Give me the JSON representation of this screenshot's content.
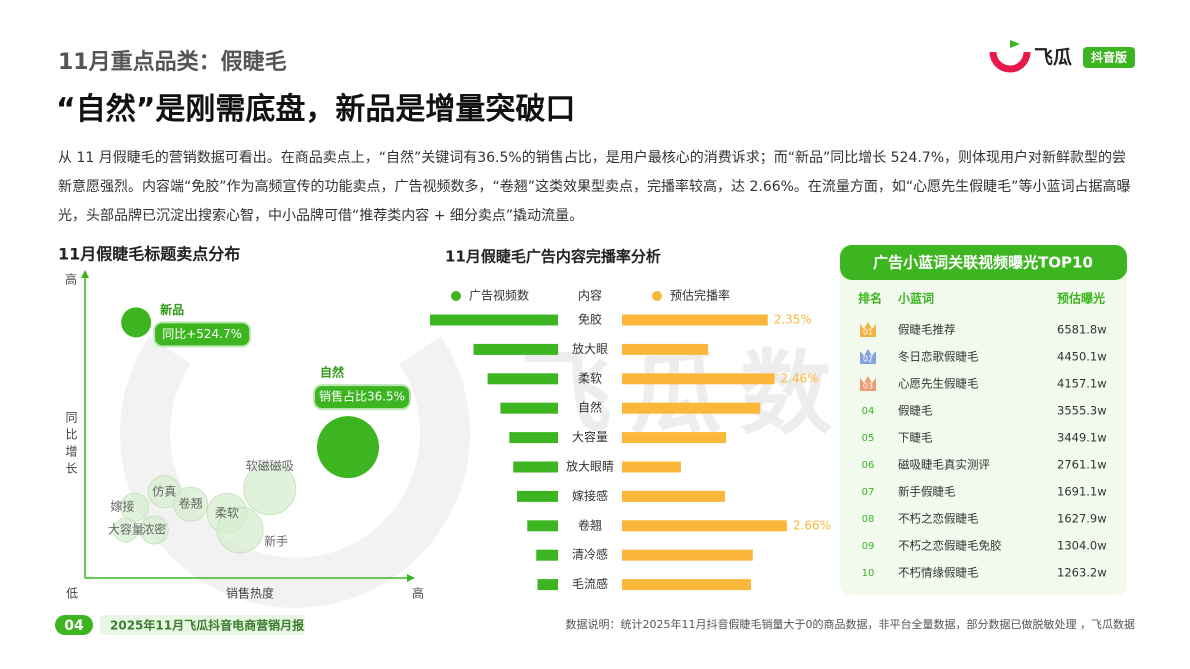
{
  "header": {
    "section": "11月重点品类：假睫毛",
    "headline": "“自然”是刚需底盘，新品是增量突破口",
    "logo": "飞瓜",
    "logo_badge": "抖音版"
  },
  "intro": "从 11 月假睫毛的营销数据可看出。在商品卖点上，“自然”关键词有36.5%的销售占比，是用户最核心的消费诉求；而“新品”同比增长 524.7%，则体现用户对新鲜款型的尝新意愿强烈。内容端“免胶”作为高频宣传的功能卖点，广告视频数多，“卷翘”这类效果型卖点，完播率较高，达 2.66%。在流量方面，如“心愿先生假睫毛”等小蓝词占据高曝光，头部品牌已沉淀出搜索心智，中小品牌可借“推荐类内容 + 细分卖点”撬动流量。",
  "watermark": "飞瓜数据",
  "chart_data": [
    {
      "type": "bubble",
      "title": "11月假睫毛标题卖点分布",
      "x_label": "销售热度",
      "y_label": "同比增长",
      "categories": [
        "新品",
        "自然",
        "软磁磁吸",
        "仿真",
        "嫁接",
        "卷翘",
        "柔软",
        "大容量",
        "浓密",
        "新手"
      ],
      "x": [
        15.5,
        79.7,
        56,
        24,
        15,
        32,
        43,
        12.4,
        21,
        47
      ],
      "values": [
        83,
        42.5,
        29,
        28,
        23,
        24,
        21,
        15.6,
        15.6,
        15.6
      ],
      "sizes": [
        15,
        31,
        26,
        16,
        14,
        17,
        20,
        12,
        14,
        23
      ],
      "highlight": [
        true,
        true,
        false,
        false,
        false,
        false,
        false,
        false,
        false,
        false
      ],
      "callouts": [
        "同比+524.7%",
        "销售占比36.5%",
        null,
        null,
        null,
        null,
        null,
        null,
        null,
        null
      ],
      "color": "#d6edcf",
      "highlight_color": "#3cb521",
      "xlim": [
        0,
        100
      ],
      "ylim": [
        0,
        100
      ],
      "xticks": [
        {
          "value": 0,
          "label": "低"
        },
        {
          "value": 100,
          "label": "高"
        }
      ],
      "yticks": [
        {
          "value": 100,
          "label": "高"
        }
      ]
    },
    {
      "type": "diverging-bar",
      "title": "11月假睫毛广告内容完播率分析",
      "category_label": "内容",
      "categories": [
        "免胶",
        "放大眼",
        "柔软",
        "自然",
        "大容量",
        "放大眼睛",
        "嫁接感",
        "卷翘",
        "清冷感",
        "毛流感"
      ],
      "series": [
        {
          "name": "广告视频数",
          "color": "#3cb521",
          "values": [
            100,
            66,
            55,
            45,
            38,
            35,
            32,
            24,
            17,
            16
          ],
          "xlim": [
            0,
            100
          ]
        },
        {
          "name": "预估完播率",
          "color": "#fbb73a",
          "values": [
            2.35,
            1.39,
            2.46,
            2.23,
            1.68,
            0.95,
            1.66,
            2.66,
            2.11,
            2.08
          ],
          "xlim": [
            0,
            3
          ],
          "value_labels": [
            "2.35%",
            null,
            "2.46%",
            null,
            null,
            null,
            null,
            "2.66%",
            null,
            null
          ]
        }
      ]
    }
  ],
  "table": {
    "title": "广告小蓝词关联视频曝光TOP10",
    "columns": [
      "排名",
      "小蓝词",
      "预估曝光"
    ],
    "rows": [
      [
        "01",
        "假睫毛推荐",
        "6581.8w"
      ],
      [
        "02",
        "冬日恋歌假睫毛",
        "4450.1w"
      ],
      [
        "03",
        "心愿先生假睫毛",
        "4157.1w"
      ],
      [
        "04",
        "假睫毛",
        "3555.3w"
      ],
      [
        "05",
        "下睫毛",
        "3449.1w"
      ],
      [
        "06",
        "磁吸睫毛真实测评",
        "2761.1w"
      ],
      [
        "07",
        "新手假睫毛",
        "1691.1w"
      ],
      [
        "08",
        "不朽之恋假睫毛",
        "1627.9w"
      ],
      [
        "09",
        "不朽之恋假睫毛免胶",
        "1304.0w"
      ],
      [
        "10",
        "不朽情缘假睫毛",
        "1263.2w"
      ]
    ]
  },
  "footer": {
    "page": "04",
    "report": "2025年11月飞瓜抖音电商营销月报",
    "note": "数据说明：统计2025年11月抖音假睫毛销量大于0的商品数据，非平台全量数据，部分数据已做脱敏处理 ，飞瓜数据"
  }
}
